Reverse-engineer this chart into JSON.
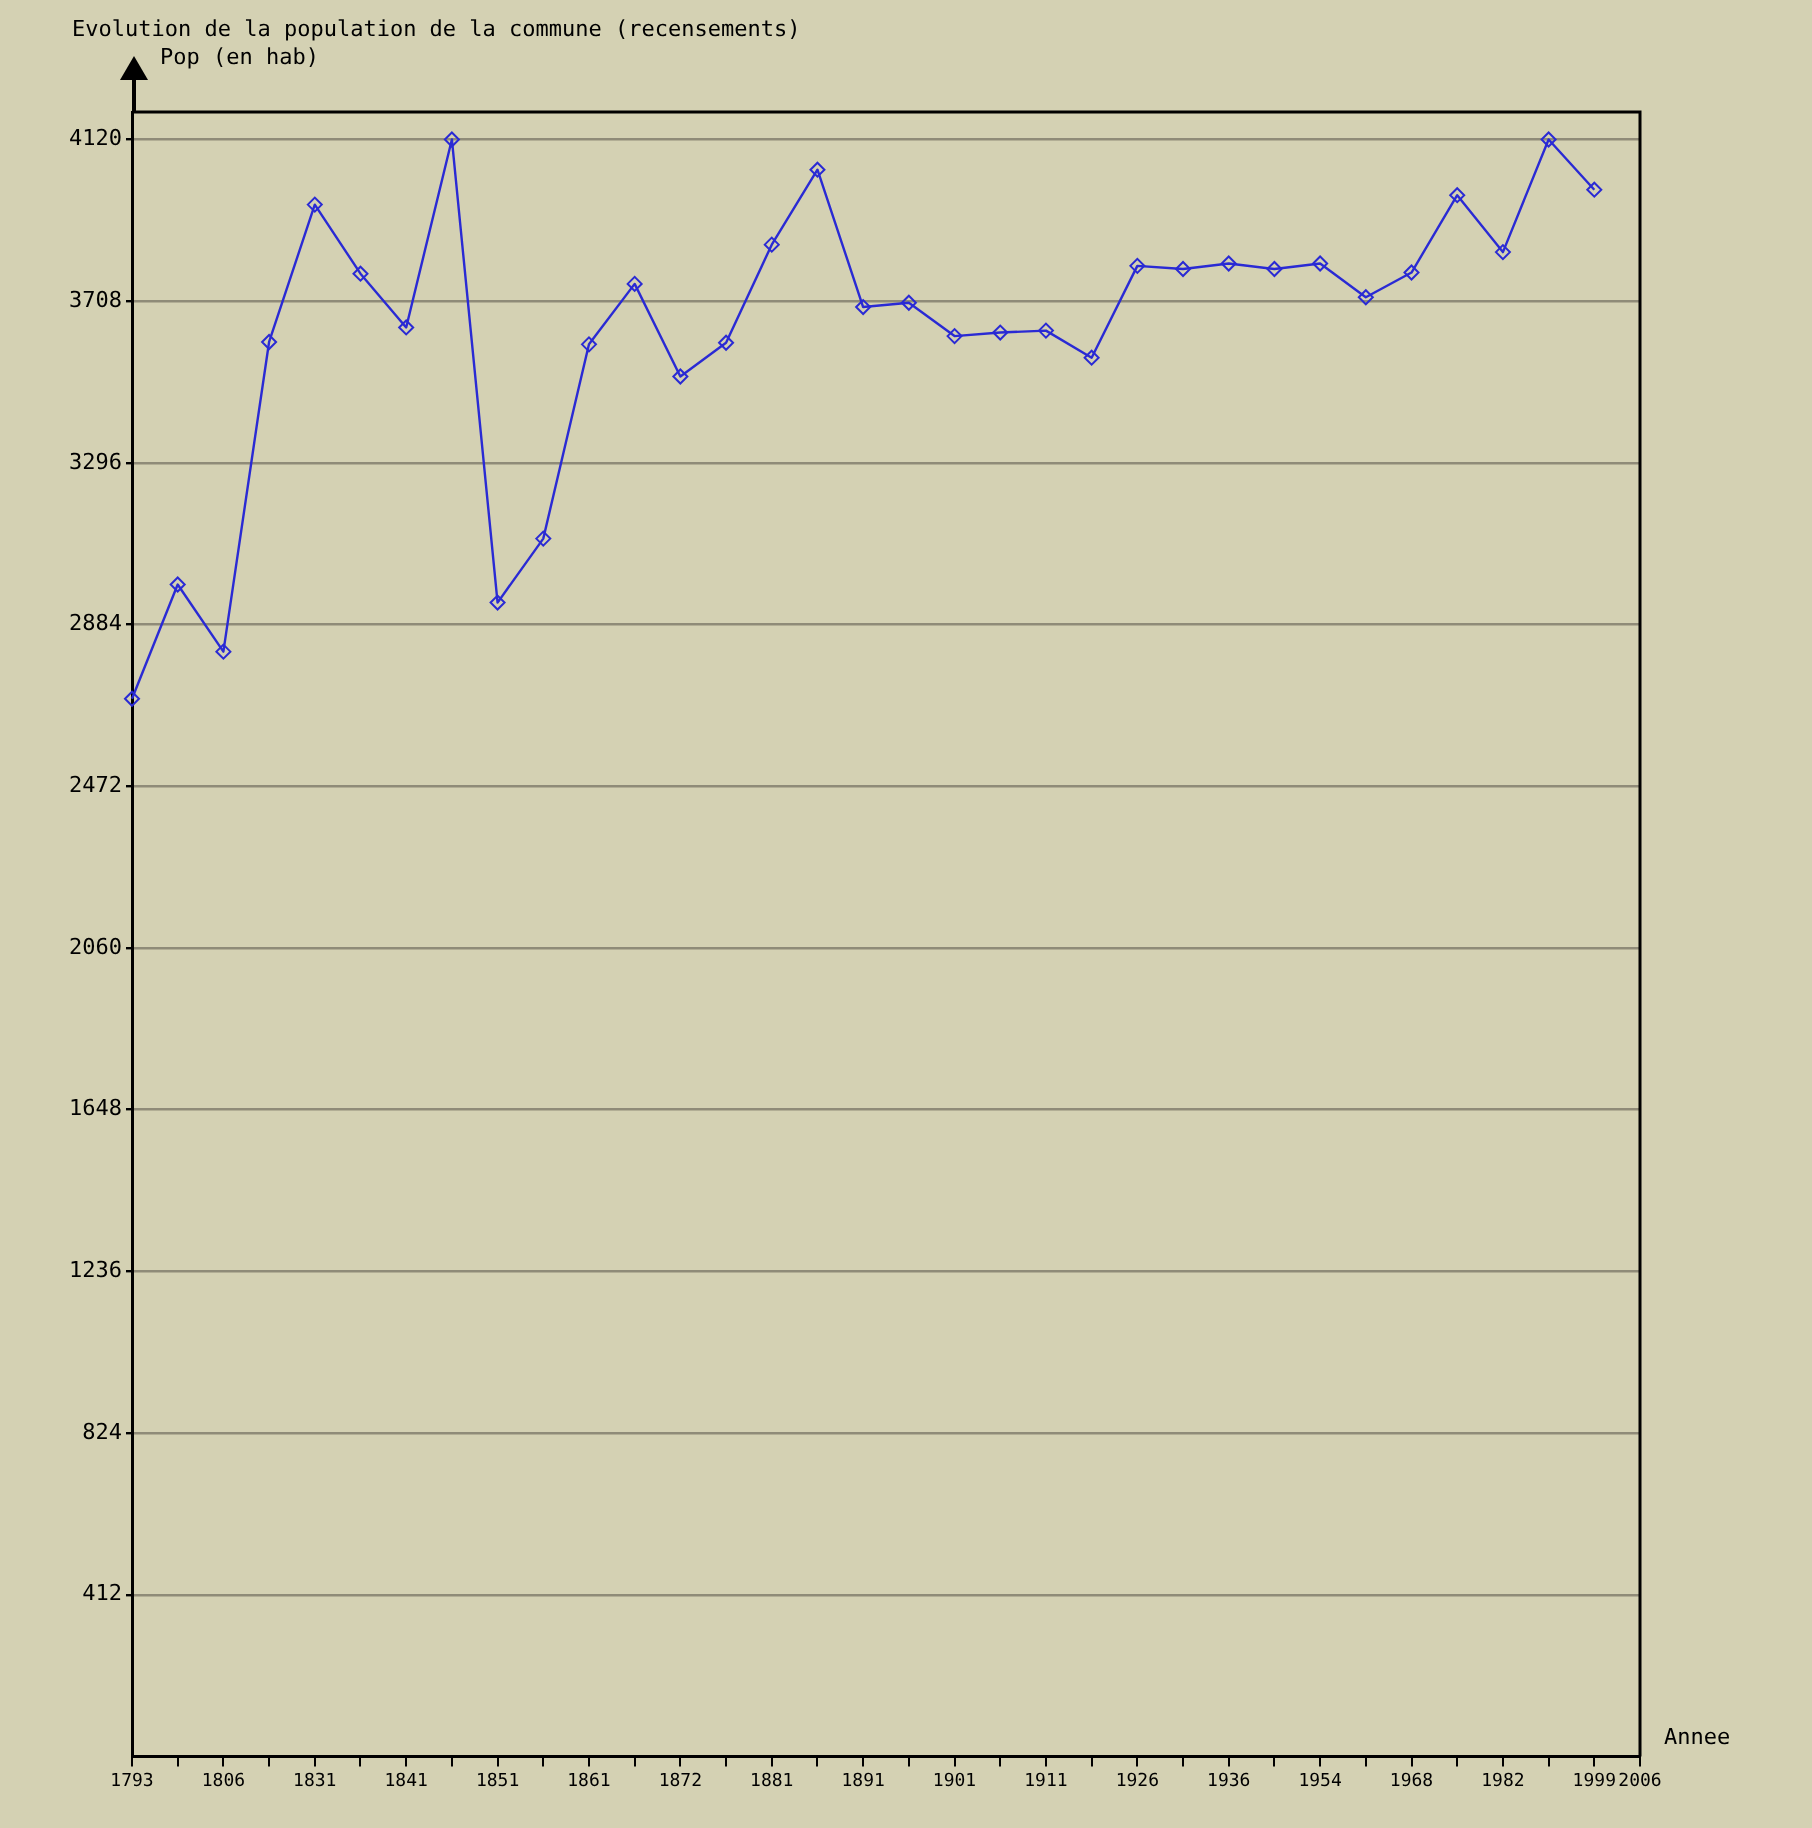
{
  "chart_data": {
    "type": "line",
    "title": "Evolution de la population de la commune (recensements)",
    "ylabel": "Pop (en hab)",
    "xlabel": "Annee",
    "categories": [
      "1793",
      null,
      "1806",
      null,
      "1831",
      null,
      "1841",
      null,
      "1851",
      null,
      "1861",
      null,
      "1872",
      null,
      "1881",
      null,
      "1891",
      null,
      "1901",
      null,
      "1911",
      null,
      "1926",
      null,
      "1936",
      null,
      "1954",
      null,
      "1968",
      null,
      "1982",
      null,
      "1999",
      "2006"
    ],
    "series": [
      {
        "color": "#2a2ad4",
        "values": [
          2695,
          2986,
          2815,
          3604,
          3954,
          3778,
          3641,
          4120,
          2940,
          3103,
          3598,
          3752,
          3516,
          3602,
          3852,
          4043,
          3693,
          3704,
          3619,
          3628,
          3633,
          3564,
          3798,
          3790,
          3804,
          3790,
          3804,
          3718,
          3781,
          3978,
          3833,
          4120,
          3992,
          null
        ]
      }
    ],
    "ylim": [
      0,
      4190
    ],
    "yticks": [
      412,
      824,
      1236,
      1648,
      2060,
      2472,
      2884,
      3296,
      3708,
      4120
    ],
    "grid": "y",
    "marker": "diamond",
    "line_style": "solid"
  }
}
